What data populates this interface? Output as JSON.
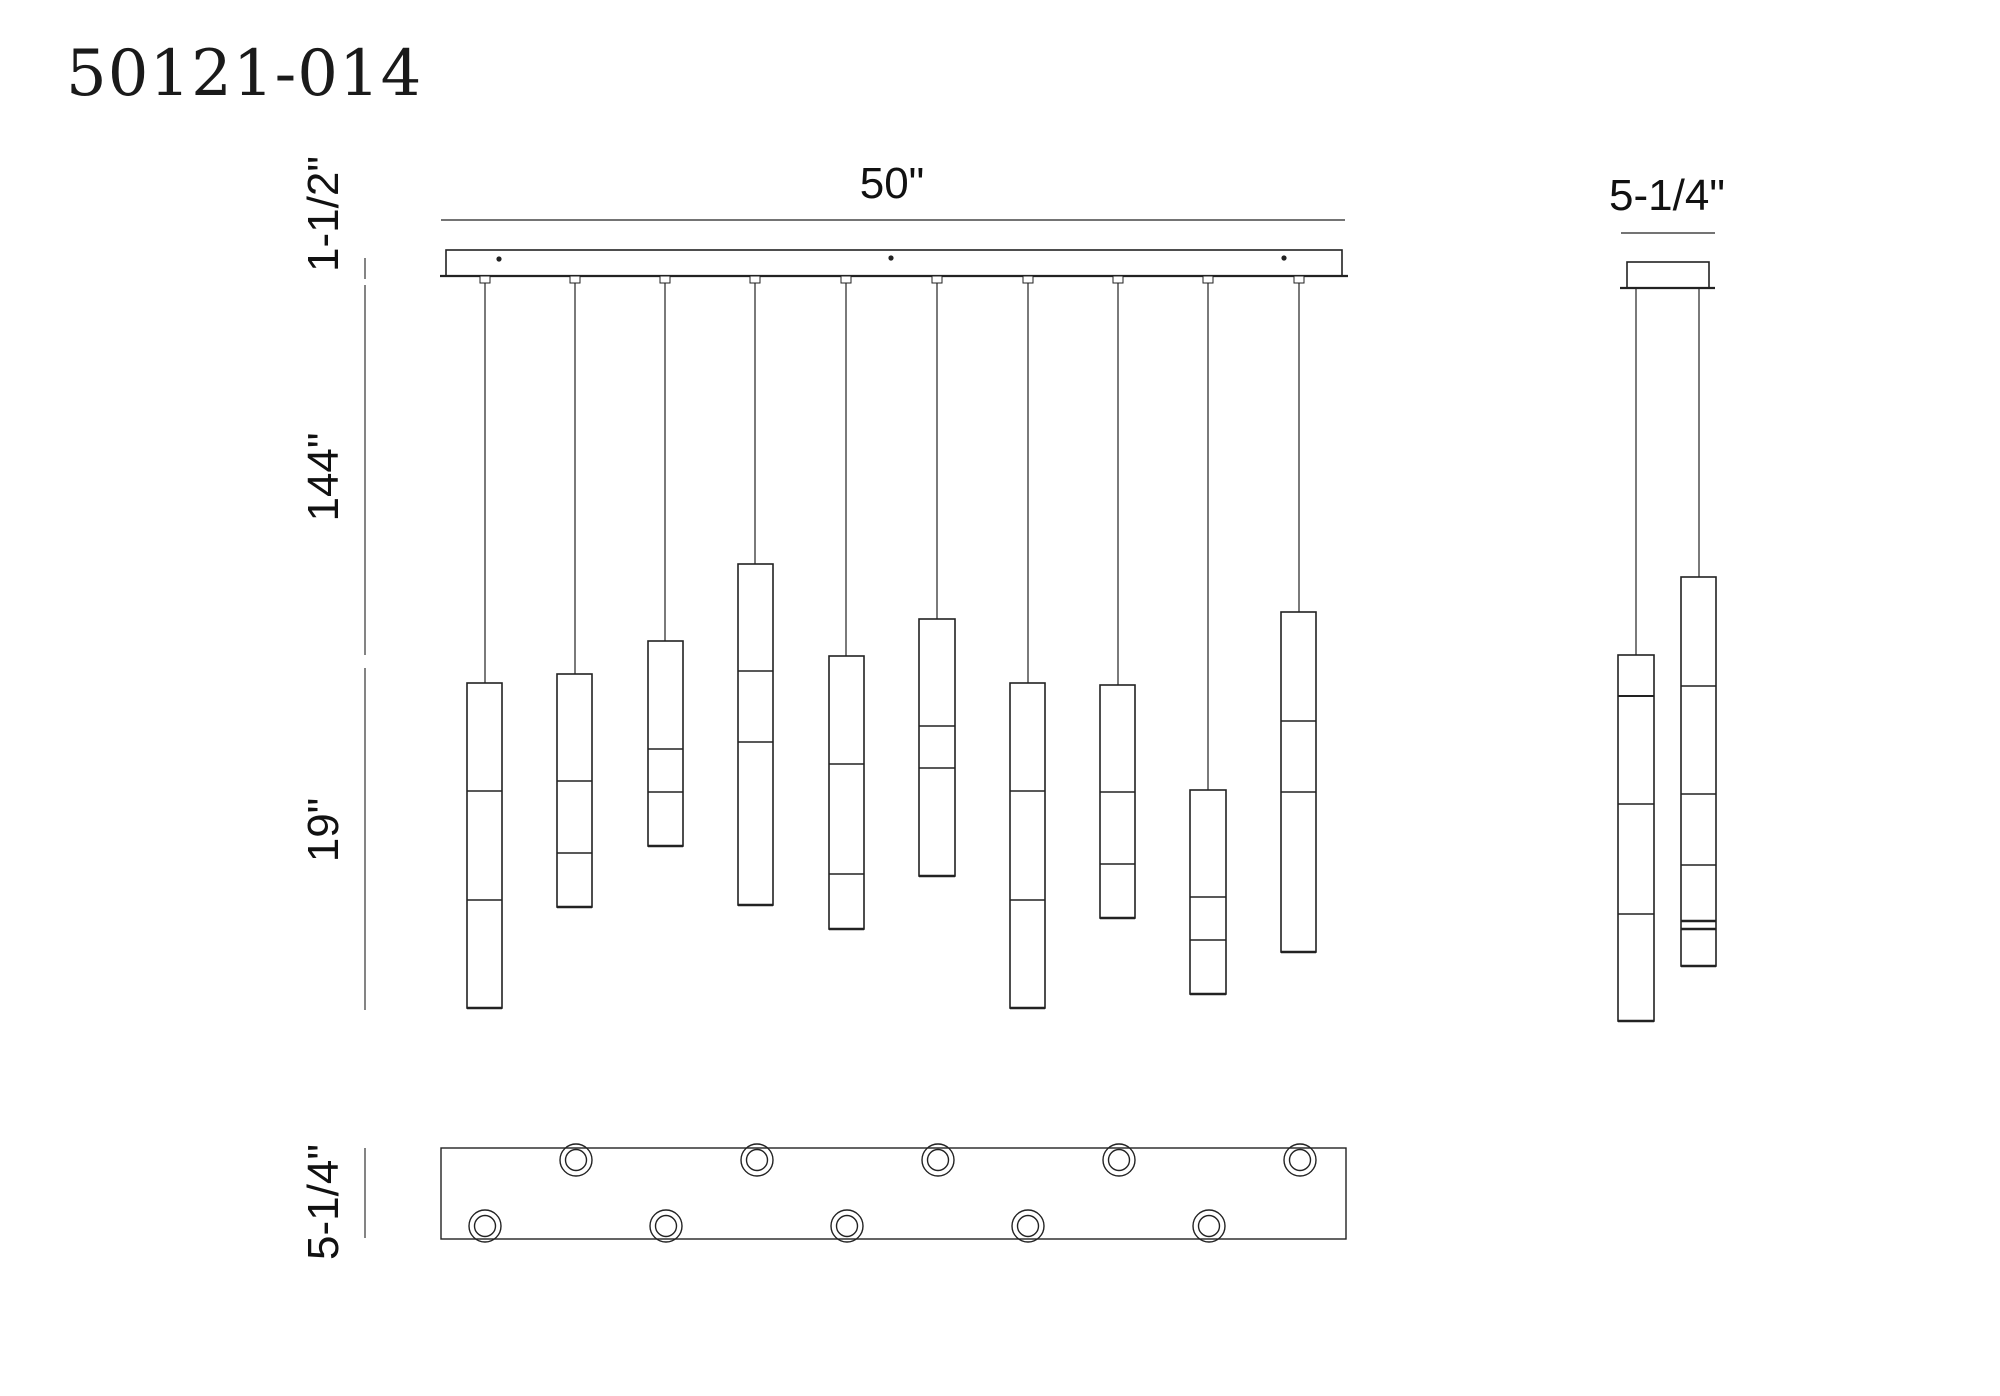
{
  "model_number": "50121-014",
  "dimensions": {
    "canopy_height": "1-1/2\"",
    "overall_width": "50\"",
    "max_cord_length": "144\"",
    "pendant_height": "19\"",
    "canopy_depth_top": "5-1/4\"",
    "canopy_depth_side": "5-1/4\""
  },
  "colors": {
    "line": "#222222",
    "background": "#ffffff"
  }
}
